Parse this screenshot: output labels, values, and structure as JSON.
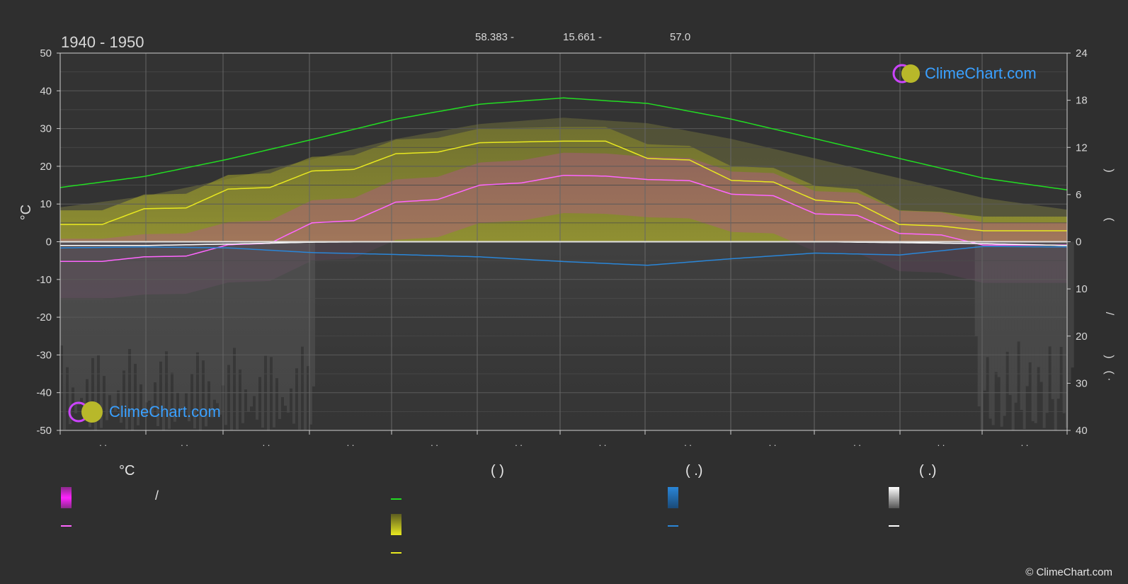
{
  "header": {
    "period": "1940 - 1950",
    "lat": "58.383 -",
    "lon": "15.661 -",
    "elev": "57.0"
  },
  "brand": {
    "name": "ClimeChart.com",
    "copyright": "© ClimeChart.com"
  },
  "colors": {
    "background": "#2f2f2f",
    "daylight": "#22dd22",
    "sunshine": "#e8e820",
    "temp_mean": "#ff66ff",
    "rain": "#2a86d8",
    "snow": "#ffffff",
    "brand": "#3aa0ff"
  },
  "chart_data": {
    "type": "line",
    "x_range": [
      0,
      12
    ],
    "month_tick_labels": [
      ". .",
      ". .",
      ". .",
      ". .",
      ". .",
      ". .",
      ". .",
      ". .",
      ". .",
      ". .",
      ". .",
      ". ."
    ],
    "y_left": {
      "label": "°C",
      "range": [
        -50,
        50
      ],
      "ticks": [
        50,
        40,
        30,
        20,
        10,
        0,
        -10,
        -20,
        -30,
        -40,
        -50
      ]
    },
    "y_right_top": {
      "range": [
        0,
        24
      ],
      "ticks": [
        24,
        18,
        12,
        6,
        0
      ]
    },
    "y_right_bottom": {
      "range": [
        0,
        40
      ],
      "ticks": [
        10,
        20,
        30,
        40
      ]
    },
    "y_right_label_fragments": [
      ")",
      "(",
      "/",
      ")",
      "( ·"
    ],
    "series": [
      {
        "key": "daylight",
        "axis": "hours",
        "x": [
          0,
          1,
          2,
          3,
          4,
          5,
          6,
          7,
          8,
          9,
          10,
          11,
          12
        ],
        "values": [
          6.9,
          8.3,
          10.5,
          13.0,
          15.6,
          17.5,
          18.3,
          17.6,
          15.6,
          13.1,
          10.6,
          8.1,
          6.6
        ]
      },
      {
        "key": "sunshine",
        "axis": "hours",
        "x": [
          0,
          0.5,
          1,
          1.5,
          2,
          2.5,
          3,
          3.5,
          4,
          4.5,
          5,
          5.5,
          6,
          6.5,
          7,
          7.5,
          8,
          8.5,
          9,
          9.5,
          10,
          10.5,
          11,
          11.5,
          12
        ],
        "values": [
          2.2,
          2.2,
          4.2,
          4.3,
          6.7,
          6.9,
          9.0,
          9.2,
          11.2,
          11.4,
          12.6,
          12.7,
          12.8,
          12.8,
          10.6,
          10.4,
          7.8,
          7.6,
          5.3,
          4.9,
          2.2,
          2.0,
          1.4,
          1.4,
          1.4
        ]
      },
      {
        "key": "temp_mean",
        "axis": "celsius",
        "x": [
          0,
          0.5,
          1,
          1.5,
          2,
          2.5,
          3,
          3.5,
          4,
          4.5,
          5,
          5.5,
          6,
          6.5,
          7,
          7.5,
          8,
          8.5,
          9,
          9.5,
          10,
          10.5,
          11,
          11.5,
          12
        ],
        "values": [
          -5.2,
          -5.2,
          -4.0,
          -3.8,
          -0.8,
          -0.4,
          5.0,
          5.6,
          10.5,
          11.2,
          15.0,
          15.6,
          17.6,
          17.4,
          16.5,
          16.2,
          12.6,
          12.2,
          7.4,
          7.0,
          2.2,
          1.8,
          -0.9,
          -0.9,
          -0.9
        ]
      },
      {
        "key": "rain",
        "axis": "precip",
        "x": [
          0,
          1,
          2,
          3,
          4,
          5,
          6,
          7,
          8,
          9,
          10,
          11,
          12
        ],
        "values": [
          1.3,
          1.1,
          1.3,
          2.3,
          2.7,
          3.2,
          4.2,
          5.0,
          3.6,
          2.4,
          2.8,
          1.0,
          1.1
        ]
      },
      {
        "key": "snow",
        "axis": "precip",
        "x": [
          0,
          1,
          2,
          3,
          4,
          5,
          6,
          7,
          8,
          9,
          10,
          11,
          12
        ],
        "values": [
          0.8,
          0.8,
          0.5,
          0.1,
          0,
          0,
          0,
          0,
          0,
          0,
          0.2,
          0.4,
          0.8
        ]
      }
    ]
  },
  "legend": {
    "col1_header": "°C",
    "col1_row1_text": "/",
    "col2_header": "(          )",
    "col3_header": "(    .)",
    "col4_header": "(    .)"
  }
}
